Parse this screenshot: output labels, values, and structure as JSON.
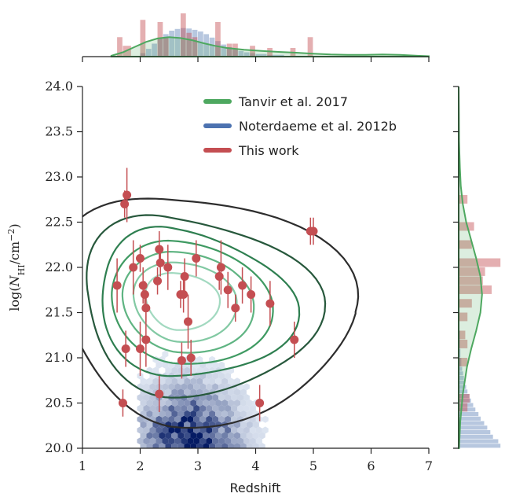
{
  "chart_data": {
    "type": "scatter",
    "xlabel": "Redshift",
    "ylabel": "log(N_HI/cm^-2)",
    "ylabel_parts": {
      "pre": "log(",
      "var": "N",
      "sub": "HI",
      "mid": "/cm",
      "sup": "−2",
      "post": ")"
    },
    "xlim": [
      1,
      7
    ],
    "ylim": [
      20.0,
      24.0
    ],
    "xticks": [
      1,
      2,
      3,
      4,
      5,
      6,
      7
    ],
    "yticks": [
      20.0,
      20.5,
      21.0,
      21.5,
      22.0,
      22.5,
      23.0,
      23.5,
      24.0
    ],
    "ytick_labels": [
      "20.0",
      "20.5",
      "21.0",
      "21.5",
      "22.0",
      "22.5",
      "23.0",
      "23.5",
      "24.0"
    ],
    "legend_position": "top-center",
    "grid": false,
    "series": [
      {
        "name": "Tanvir et al. 2017",
        "kind": "kde-contour",
        "color": "#4ea860",
        "contour_colors": [
          "#2d2d2d",
          "#27583c",
          "#2e7f50",
          "#3f9a62",
          "#5fb482",
          "#82c9a3",
          "#a2d9c0"
        ],
        "kde_center": [
          2.6,
          21.65
        ],
        "kde_sigma": [
          1.0,
          0.58
        ],
        "kde_rho": -0.12,
        "contour_levels": [
          0.13,
          0.28,
          0.42,
          0.55,
          0.67,
          0.78,
          0.88
        ]
      },
      {
        "name": "Noterdaeme et al. 2012b",
        "kind": "hexbin",
        "color": "#4c72b0",
        "density_center": [
          2.85,
          20.0
        ],
        "density_sigma": [
          0.55,
          0.42
        ],
        "x_range": [
          2.0,
          5.0
        ],
        "y_range": [
          20.0,
          21.4
        ]
      },
      {
        "name": "This work",
        "kind": "errorbar-scatter",
        "color": "#c44e52",
        "points": [
          {
            "x": 1.6,
            "y": 21.8,
            "err": 0.3
          },
          {
            "x": 1.7,
            "y": 20.5,
            "err": 0.15
          },
          {
            "x": 1.73,
            "y": 22.7,
            "err": 0.15
          },
          {
            "x": 1.77,
            "y": 22.8,
            "err": 0.3
          },
          {
            "x": 1.75,
            "y": 21.1,
            "err": 0.2
          },
          {
            "x": 1.88,
            "y": 22.0,
            "err": 0.3
          },
          {
            "x": 2.0,
            "y": 22.1,
            "err": 0.15
          },
          {
            "x": 2.0,
            "y": 21.1,
            "err": 0.3
          },
          {
            "x": 2.05,
            "y": 21.8,
            "err": 0.2
          },
          {
            "x": 2.08,
            "y": 21.7,
            "err": 0.15
          },
          {
            "x": 2.1,
            "y": 21.55,
            "err": 0.15
          },
          {
            "x": 2.1,
            "y": 21.2,
            "err": 0.3
          },
          {
            "x": 2.3,
            "y": 21.85,
            "err": 0.15
          },
          {
            "x": 2.33,
            "y": 22.2,
            "err": 0.2
          },
          {
            "x": 2.35,
            "y": 22.05,
            "err": 0.15
          },
          {
            "x": 2.33,
            "y": 20.6,
            "err": 0.2
          },
          {
            "x": 2.48,
            "y": 22.0,
            "err": 0.25
          },
          {
            "x": 2.7,
            "y": 21.7,
            "err": 0.15
          },
          {
            "x": 2.72,
            "y": 20.97,
            "err": 0.2
          },
          {
            "x": 2.75,
            "y": 21.7,
            "err": 0.2
          },
          {
            "x": 2.77,
            "y": 21.9,
            "err": 0.2
          },
          {
            "x": 2.83,
            "y": 21.4,
            "err": 0.3
          },
          {
            "x": 2.88,
            "y": 21.0,
            "err": 0.2
          },
          {
            "x": 2.97,
            "y": 22.1,
            "err": 0.2
          },
          {
            "x": 3.37,
            "y": 21.9,
            "err": 0.15
          },
          {
            "x": 3.4,
            "y": 22.0,
            "err": 0.3
          },
          {
            "x": 3.52,
            "y": 21.75,
            "err": 0.2
          },
          {
            "x": 3.65,
            "y": 21.55,
            "err": 0.15
          },
          {
            "x": 3.77,
            "y": 21.8,
            "err": 0.2
          },
          {
            "x": 3.92,
            "y": 21.7,
            "err": 0.2
          },
          {
            "x": 4.07,
            "y": 20.5,
            "err": 0.2
          },
          {
            "x": 4.25,
            "y": 21.6,
            "err": 0.25
          },
          {
            "x": 4.67,
            "y": 21.2,
            "err": 0.2
          },
          {
            "x": 4.95,
            "y": 22.4,
            "err": 0.15
          },
          {
            "x": 5.0,
            "y": 22.4,
            "err": 0.15
          }
        ]
      }
    ],
    "marginal_x": {
      "this_work_hist": [
        {
          "x0": 1.6,
          "x1": 1.7,
          "h": 0.45
        },
        {
          "x0": 1.7,
          "x1": 1.85,
          "h": 0.25
        },
        {
          "x0": 2.0,
          "x1": 2.1,
          "h": 0.85
        },
        {
          "x0": 2.3,
          "x1": 2.4,
          "h": 0.8
        },
        {
          "x0": 2.4,
          "x1": 2.5,
          "h": 0.45
        },
        {
          "x0": 2.7,
          "x1": 2.8,
          "h": 1.0
        },
        {
          "x0": 2.8,
          "x1": 2.9,
          "h": 0.55
        },
        {
          "x0": 2.9,
          "x1": 3.0,
          "h": 0.45
        },
        {
          "x0": 3.3,
          "x1": 3.4,
          "h": 0.8
        },
        {
          "x0": 3.5,
          "x1": 3.6,
          "h": 0.3
        },
        {
          "x0": 3.6,
          "x1": 3.7,
          "h": 0.3
        },
        {
          "x0": 3.9,
          "x1": 4.0,
          "h": 0.25
        },
        {
          "x0": 4.2,
          "x1": 4.3,
          "h": 0.2
        },
        {
          "x0": 4.6,
          "x1": 4.7,
          "h": 0.2
        },
        {
          "x0": 4.9,
          "x1": 5.0,
          "h": 0.45
        }
      ],
      "noterdaeme_hist": [
        {
          "x0": 2.0,
          "x1": 2.1,
          "h": 0.08
        },
        {
          "x0": 2.1,
          "x1": 2.2,
          "h": 0.18
        },
        {
          "x0": 2.2,
          "x1": 2.3,
          "h": 0.3
        },
        {
          "x0": 2.3,
          "x1": 2.4,
          "h": 0.42
        },
        {
          "x0": 2.4,
          "x1": 2.5,
          "h": 0.52
        },
        {
          "x0": 2.5,
          "x1": 2.6,
          "h": 0.6
        },
        {
          "x0": 2.6,
          "x1": 2.7,
          "h": 0.64
        },
        {
          "x0": 2.7,
          "x1": 2.8,
          "h": 0.66
        },
        {
          "x0": 2.8,
          "x1": 2.9,
          "h": 0.65
        },
        {
          "x0": 2.9,
          "x1": 3.0,
          "h": 0.62
        },
        {
          "x0": 3.0,
          "x1": 3.1,
          "h": 0.58
        },
        {
          "x0": 3.1,
          "x1": 3.2,
          "h": 0.52
        },
        {
          "x0": 3.2,
          "x1": 3.3,
          "h": 0.44
        },
        {
          "x0": 3.3,
          "x1": 3.4,
          "h": 0.36
        },
        {
          "x0": 3.4,
          "x1": 3.5,
          "h": 0.28
        },
        {
          "x0": 3.5,
          "x1": 3.6,
          "h": 0.22
        },
        {
          "x0": 3.6,
          "x1": 3.7,
          "h": 0.17
        },
        {
          "x0": 3.7,
          "x1": 3.8,
          "h": 0.13
        },
        {
          "x0": 3.8,
          "x1": 3.9,
          "h": 0.1
        },
        {
          "x0": 3.9,
          "x1": 4.0,
          "h": 0.08
        },
        {
          "x0": 4.0,
          "x1": 4.2,
          "h": 0.06
        },
        {
          "x0": 4.2,
          "x1": 4.5,
          "h": 0.04
        }
      ],
      "tanvir_kde": [
        [
          1.5,
          0.02
        ],
        [
          1.7,
          0.1
        ],
        [
          1.9,
          0.22
        ],
        [
          2.1,
          0.34
        ],
        [
          2.3,
          0.42
        ],
        [
          2.5,
          0.45
        ],
        [
          2.7,
          0.43
        ],
        [
          2.9,
          0.38
        ],
        [
          3.1,
          0.31
        ],
        [
          3.3,
          0.25
        ],
        [
          3.5,
          0.2
        ],
        [
          3.8,
          0.16
        ],
        [
          4.1,
          0.13
        ],
        [
          4.4,
          0.11
        ],
        [
          4.7,
          0.09
        ],
        [
          5.0,
          0.07
        ],
        [
          5.3,
          0.05
        ],
        [
          5.6,
          0.04
        ],
        [
          5.9,
          0.04
        ],
        [
          6.2,
          0.05
        ],
        [
          6.5,
          0.04
        ],
        [
          6.8,
          0.02
        ],
        [
          7.0,
          0.01
        ]
      ]
    },
    "marginal_y": {
      "this_work_hist": [
        {
          "y0": 20.4,
          "y1": 20.5,
          "w": 0.2
        },
        {
          "y0": 20.5,
          "y1": 20.6,
          "w": 0.25
        },
        {
          "y0": 20.9,
          "y1": 21.0,
          "w": 0.2
        },
        {
          "y0": 21.1,
          "y1": 21.2,
          "w": 0.2
        },
        {
          "y0": 21.2,
          "y1": 21.3,
          "w": 0.15
        },
        {
          "y0": 21.4,
          "y1": 21.5,
          "w": 0.2
        },
        {
          "y0": 21.55,
          "y1": 21.65,
          "w": 0.3
        },
        {
          "y0": 21.7,
          "y1": 21.8,
          "w": 0.75
        },
        {
          "y0": 21.8,
          "y1": 21.9,
          "w": 0.55
        },
        {
          "y0": 21.9,
          "y1": 22.0,
          "w": 0.6
        },
        {
          "y0": 22.0,
          "y1": 22.1,
          "w": 0.95
        },
        {
          "y0": 22.2,
          "y1": 22.3,
          "w": 0.3
        },
        {
          "y0": 22.4,
          "y1": 22.5,
          "w": 0.35
        },
        {
          "y0": 22.7,
          "y1": 22.8,
          "w": 0.2
        }
      ],
      "noterdaeme_hist": [
        {
          "y0": 20.0,
          "y1": 20.05,
          "w": 0.95
        },
        {
          "y0": 20.05,
          "y1": 20.1,
          "w": 0.9
        },
        {
          "y0": 20.1,
          "y1": 20.15,
          "w": 0.78
        },
        {
          "y0": 20.15,
          "y1": 20.2,
          "w": 0.72
        },
        {
          "y0": 20.2,
          "y1": 20.25,
          "w": 0.65
        },
        {
          "y0": 20.25,
          "y1": 20.3,
          "w": 0.58
        },
        {
          "y0": 20.3,
          "y1": 20.35,
          "w": 0.5
        },
        {
          "y0": 20.35,
          "y1": 20.4,
          "w": 0.45
        },
        {
          "y0": 20.4,
          "y1": 20.45,
          "w": 0.38
        },
        {
          "y0": 20.45,
          "y1": 20.5,
          "w": 0.33
        },
        {
          "y0": 20.5,
          "y1": 20.55,
          "w": 0.28
        },
        {
          "y0": 20.55,
          "y1": 20.6,
          "w": 0.24
        },
        {
          "y0": 20.6,
          "y1": 20.65,
          "w": 0.2
        },
        {
          "y0": 20.65,
          "y1": 20.7,
          "w": 0.17
        },
        {
          "y0": 20.7,
          "y1": 20.75,
          "w": 0.14
        },
        {
          "y0": 20.75,
          "y1": 20.8,
          "w": 0.12
        },
        {
          "y0": 20.8,
          "y1": 20.85,
          "w": 0.1
        },
        {
          "y0": 20.85,
          "y1": 20.9,
          "w": 0.08
        },
        {
          "y0": 20.9,
          "y1": 21.0,
          "w": 0.06
        },
        {
          "y0": 21.0,
          "y1": 21.1,
          "w": 0.04
        },
        {
          "y0": 21.1,
          "y1": 21.3,
          "w": 0.03
        }
      ],
      "tanvir_kde": [
        [
          20.0,
          0.01
        ],
        [
          20.3,
          0.04
        ],
        [
          20.6,
          0.1
        ],
        [
          20.9,
          0.2
        ],
        [
          21.1,
          0.3
        ],
        [
          21.3,
          0.42
        ],
        [
          21.5,
          0.52
        ],
        [
          21.7,
          0.56
        ],
        [
          21.9,
          0.52
        ],
        [
          22.1,
          0.42
        ],
        [
          22.3,
          0.3
        ],
        [
          22.5,
          0.18
        ],
        [
          22.7,
          0.1
        ],
        [
          22.9,
          0.05
        ],
        [
          23.1,
          0.03
        ],
        [
          23.4,
          0.01
        ],
        [
          23.7,
          0.005
        ],
        [
          24.0,
          0.0
        ]
      ]
    }
  }
}
